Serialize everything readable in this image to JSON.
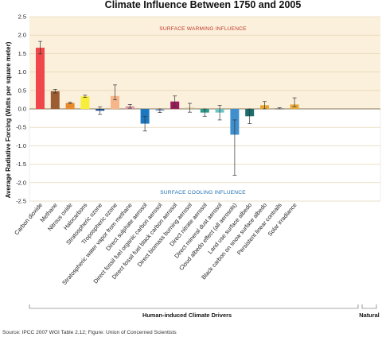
{
  "chart_data": {
    "type": "bar",
    "title": "Climate Influence Between 1750 and 2005",
    "ylabel": "Average Radiative Forcing (Watts per square meter)",
    "xlabel": "",
    "ylim": [
      -2.5,
      2.5
    ],
    "yticks": [
      "2.5",
      "2.0",
      "1.5",
      "1.0",
      "0.5",
      "0.0",
      "-0.5",
      "-1.0",
      "-1.5",
      "-2.0",
      "-2.5"
    ],
    "grid": true,
    "zone_labels": {
      "warming": "SURFACE WARMING INFLUENCE",
      "cooling": "SURFACE COOLING INFLUENCE"
    },
    "group_labels": {
      "human": "Human-induced Climate Drivers",
      "natural": "Natural"
    },
    "source": "Source: IPCC 2007 WGI Table 2.12; Figure: Union of Concerned Scientists",
    "colors": {
      "warming_zone": "#fbf0dc",
      "cooling_zone": "#ffffff",
      "gridline": "#e0cfa8"
    },
    "categories": [
      "Carbon dioxide",
      "Methane",
      "Nitrous oxide",
      "Halocarbons",
      "Stratospheric ozone",
      "Tropospheric ozone",
      "Stratospheric water vapor from methane",
      "Direct sulphate aerosol",
      "Direct fossil fuel organic carbon aerosol",
      "Direct fossil fuel black carbon aerosol",
      "Direct biomass burning aerosol",
      "Direct nitrate aerosol",
      "Direct mineral dust aerosol",
      "Cloud albedo effect (all aerosols)",
      "Land use surface albedo",
      "Black carbon on snow surface albedo",
      "Persistent linear contrails",
      "Solar irradiance"
    ],
    "values": [
      1.66,
      0.48,
      0.16,
      0.34,
      -0.05,
      0.35,
      0.07,
      -0.4,
      -0.05,
      0.2,
      0.03,
      -0.1,
      -0.1,
      -0.7,
      -0.2,
      0.1,
      0.01,
      0.12
    ],
    "error_low": [
      1.49,
      0.43,
      0.14,
      0.31,
      -0.15,
      0.25,
      0.02,
      -0.6,
      -0.1,
      0.05,
      -0.09,
      -0.2,
      -0.3,
      -1.8,
      -0.4,
      0.0,
      0.003,
      0.06
    ],
    "error_high": [
      1.83,
      0.53,
      0.18,
      0.37,
      0.05,
      0.65,
      0.12,
      -0.2,
      0.0,
      0.35,
      0.15,
      0.0,
      0.1,
      -0.3,
      0.0,
      0.2,
      0.03,
      0.3
    ],
    "bar_colors": [
      "#f0484a",
      "#9c5d33",
      "#e88a2a",
      "#f6ee3a",
      "#1f4d93",
      "#f7b58a",
      "#d79aa6",
      "#1b77c0",
      "#8aa3bf",
      "#9a1d5a",
      "#c9b98a",
      "#2d9a8a",
      "#6cc6c4",
      "#3f8fce",
      "#1d6d6d",
      "#e6a732",
      "#4a4a4a",
      "#e8a93a"
    ]
  }
}
